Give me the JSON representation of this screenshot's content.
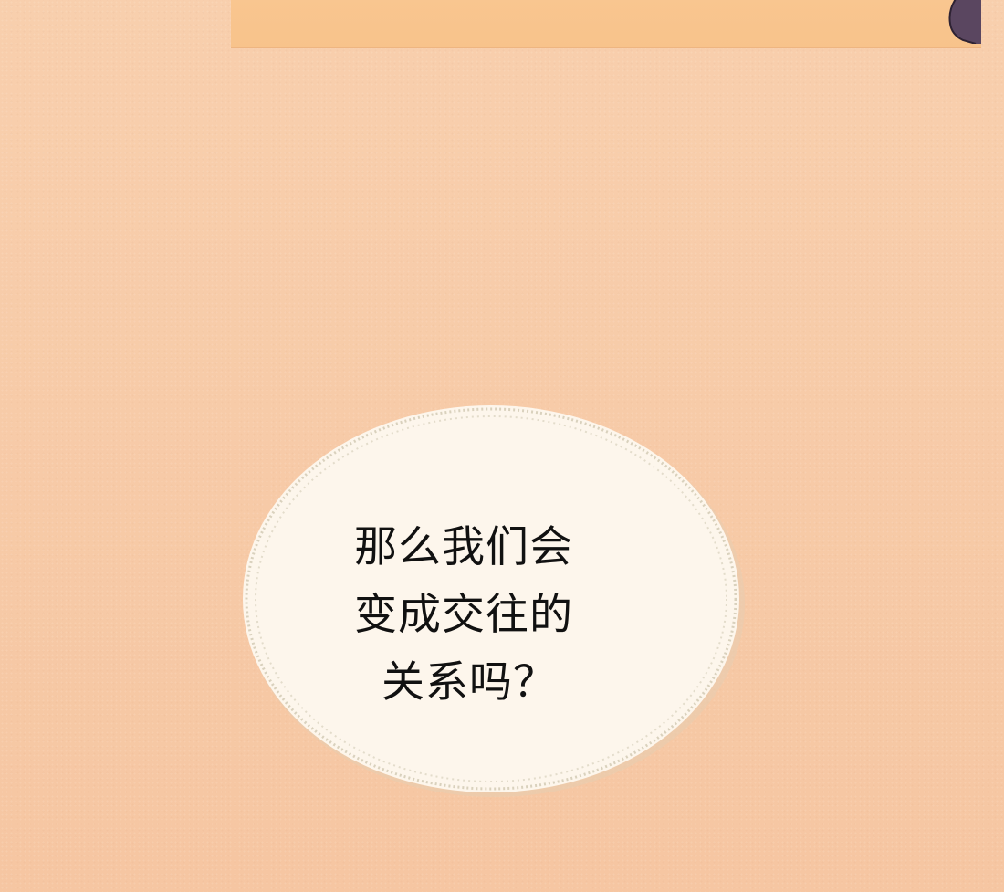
{
  "speech_bubble": {
    "lines": [
      "那么我们会",
      "变成交往的",
      "关系吗？"
    ]
  },
  "colors": {
    "background": "#f7cba8",
    "top_panel": "#f8c38b",
    "bubble_fill": "#fdf6ec",
    "bubble_dots": "#d9d1bd",
    "hair": "#5a4660",
    "text": "#111111"
  }
}
